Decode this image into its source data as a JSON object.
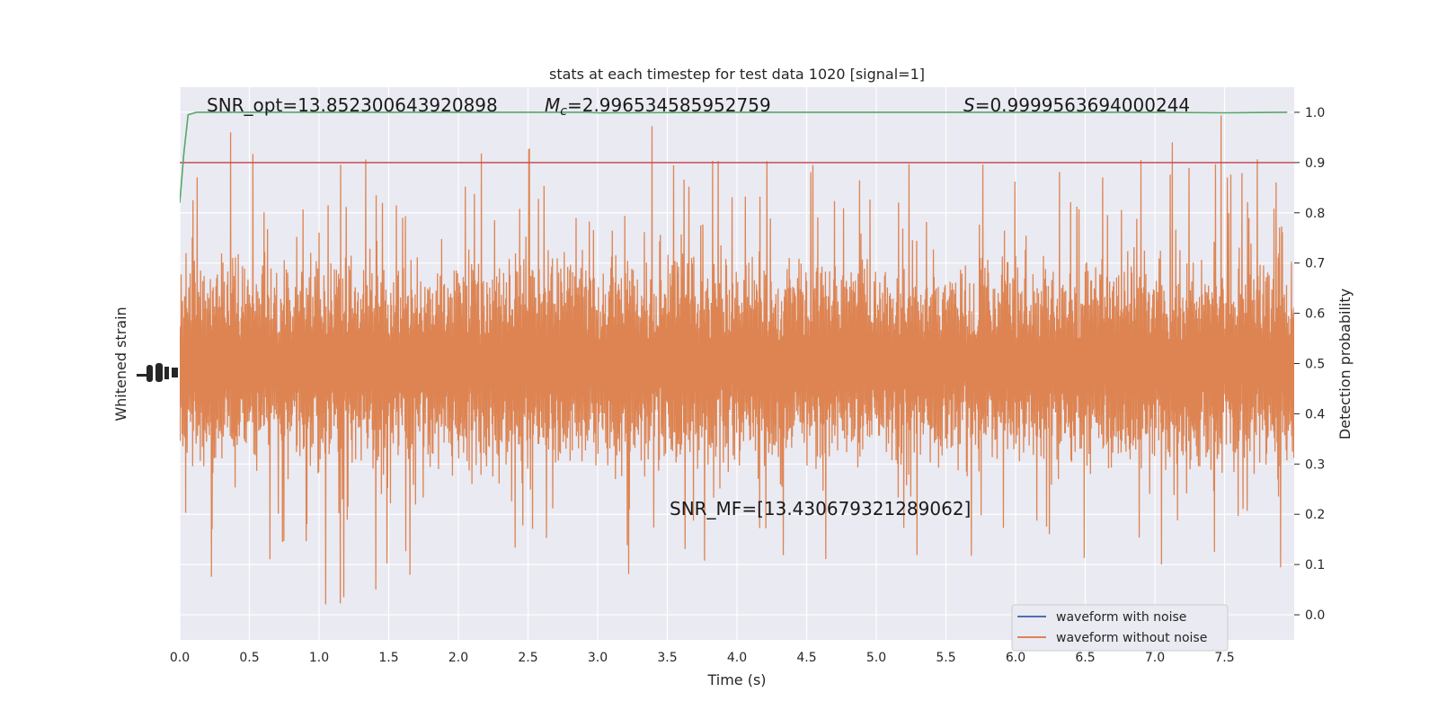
{
  "chart_data": {
    "type": "line",
    "title": "stats at each timestep for test data 1020 [signal=1]",
    "xlabel": "Time (s)",
    "ylabel_left": "Whitened strain",
    "ylabel_right": "Detection probability",
    "xlim": [
      0,
      8.0
    ],
    "ylim_right": [
      -0.05,
      1.05
    ],
    "x_ticks": [
      0.0,
      0.5,
      1.0,
      1.5,
      2.0,
      2.5,
      3.0,
      3.5,
      4.0,
      4.5,
      5.0,
      5.5,
      6.0,
      6.5,
      7.0,
      7.5
    ],
    "x_tick_labels": [
      "0.0",
      "0.5",
      "1.0",
      "1.5",
      "2.0",
      "2.5",
      "3.0",
      "3.5",
      "4.0",
      "4.5",
      "5.0",
      "5.5",
      "6.0",
      "6.5",
      "7.0",
      "7.5"
    ],
    "y_ticks_right": [
      0.0,
      0.1,
      0.2,
      0.3,
      0.4,
      0.5,
      0.6,
      0.7,
      0.8,
      0.9,
      1.0
    ],
    "y_tick_labels_right": [
      "0.0",
      "0.1",
      "0.2",
      "0.3",
      "0.4",
      "0.5",
      "0.6",
      "0.7",
      "0.8",
      "0.9",
      "1.0"
    ],
    "grid": true,
    "legend_position": "lower-right",
    "legend": [
      {
        "label": "waveform with noise",
        "color": "#4c72b0"
      },
      {
        "label": "waveform without noise",
        "color": "#dd8452"
      }
    ],
    "noise_trace": {
      "name": "waveform without noise",
      "color": "#dd8452",
      "center": 0.5,
      "typical_amplitude": 0.23,
      "peak_max": 1.0,
      "peak_min": 0.0
    },
    "threshold": {
      "value": 0.9,
      "color": "#c44e52"
    },
    "probability": {
      "color": "#55a868",
      "x": [
        0.0,
        0.03,
        0.06,
        0.12,
        1.0,
        2.0,
        2.9,
        3.0,
        4.0,
        5.0,
        6.0,
        7.0,
        7.5,
        7.95
      ],
      "y": [
        0.82,
        0.92,
        0.995,
        1.0,
        1.0,
        1.0,
        1.0,
        0.999,
        1.0,
        1.0,
        1.0,
        1.0,
        0.999,
        1.0
      ]
    },
    "annotations": {
      "snr_opt": "SNR_opt=13.852300643920898",
      "mc_symbol": "M",
      "mc_sub": "c",
      "mc_value": "=2.996534585952759",
      "s_symbol": "S",
      "s_value": "=0.9999563694000244",
      "snr_mf": "SNR_MF=[13.430679321289062]"
    }
  },
  "colors": {
    "plot_background": "#eaeaf2",
    "grid": "#ffffff",
    "text": "#262626"
  }
}
